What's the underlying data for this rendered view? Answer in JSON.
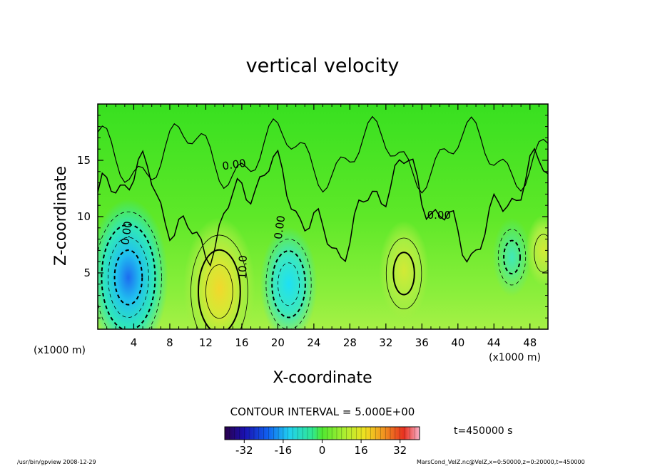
{
  "chart_data": {
    "type": "heatmap",
    "title": "vertical velocity",
    "xlabel": "X-coordinate",
    "ylabel": "Z-coordinate",
    "x_unit": "(x1000 m)",
    "z_unit": "(x1000 m)",
    "xlim": [
      0,
      50
    ],
    "ylim": [
      0,
      20
    ],
    "x_ticks": [
      4,
      8,
      12,
      16,
      20,
      24,
      28,
      32,
      36,
      40,
      44,
      48
    ],
    "y_ticks": [
      5,
      10,
      15
    ],
    "contour_interval_text": "CONTOUR INTERVAL = 5.000E+00",
    "contour_labels": [
      {
        "text": "0.00",
        "x": 15.2,
        "z": 14.3,
        "rotate": -8
      },
      {
        "text": "0.00",
        "x": 3.6,
        "z": 8.5,
        "rotate": -82
      },
      {
        "text": "0.00",
        "x": 20.6,
        "z": 9.0,
        "rotate": -82
      },
      {
        "text": "0.00",
        "x": 37.9,
        "z": 9.8,
        "rotate": 0
      },
      {
        "text": "10.0",
        "x": 16.5,
        "z": 5.5,
        "rotate": -88
      }
    ],
    "colorbar": {
      "min": -40,
      "max": 40,
      "ticks": [
        "-32",
        "-16",
        "0",
        "16",
        "32"
      ],
      "tick_values": [
        -32,
        -16,
        0,
        16,
        32
      ]
    },
    "features": [
      {
        "name": "updraft",
        "x": 13.5,
        "z": 3.6,
        "w": 14
      },
      {
        "name": "downdraft",
        "x": 3.4,
        "z": 4.6,
        "w": -16
      },
      {
        "name": "downdraft",
        "x": 21.2,
        "z": 4.0,
        "w": -10
      },
      {
        "name": "updraft",
        "x": 34.0,
        "z": 5.2,
        "w": 8
      },
      {
        "name": "downdraft",
        "x": 46.0,
        "z": 6.4,
        "w": -5
      },
      {
        "name": "updraft",
        "x": 49.5,
        "z": 7.0,
        "w": 4
      }
    ],
    "time_label": "t=450000 s",
    "footer_left": "/usr/bin/gpview  2008-12-29",
    "footer_right": "MarsCond_VelZ.nc@VelZ,x=0:50000,z=0:20000,t=450000"
  }
}
